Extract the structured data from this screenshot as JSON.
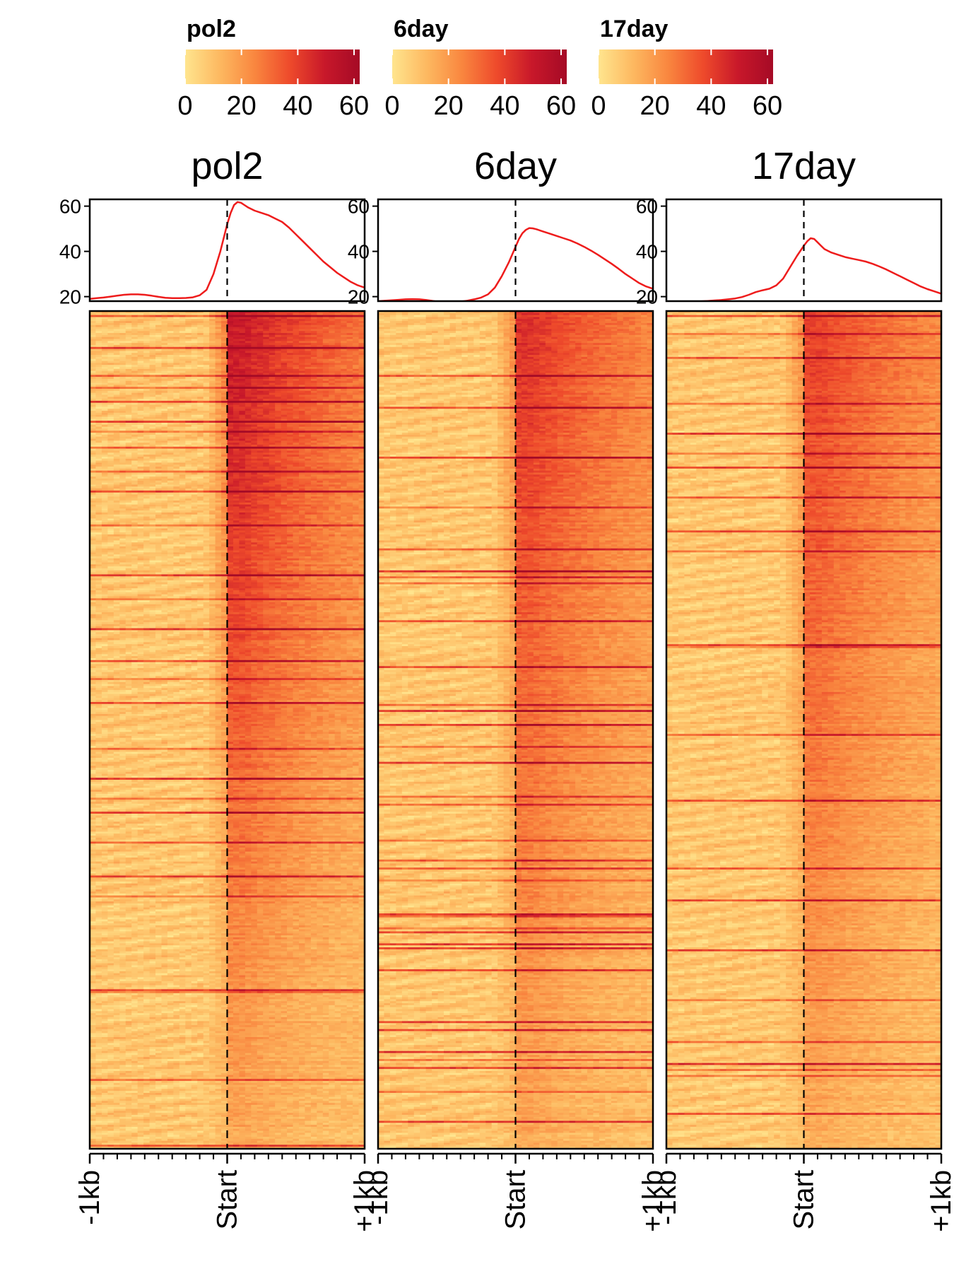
{
  "figure": {
    "type": "heatmap",
    "colorscale": [
      "#FFE58E",
      "#FDB860",
      "#F9863F",
      "#EE4A2B",
      "#C8182A",
      "#A50A26"
    ]
  },
  "legends": [
    {
      "title": "pol2",
      "ticks": [
        "0",
        "20",
        "40",
        "60"
      ],
      "range": [
        0,
        62
      ]
    },
    {
      "title": "6day",
      "ticks": [
        "0",
        "20",
        "40",
        "60"
      ],
      "range": [
        0,
        62
      ]
    },
    {
      "title": "17day",
      "ticks": [
        "0",
        "20",
        "40",
        "60"
      ],
      "range": [
        0,
        62
      ]
    }
  ],
  "panels": [
    {
      "title": "pol2"
    },
    {
      "title": "6day"
    },
    {
      "title": "17day"
    }
  ],
  "x_axis": {
    "ticks": [
      "-1kb",
      "Start",
      "+1kb"
    ],
    "range": [
      -1000,
      1000
    ]
  },
  "chart_data": [
    {
      "type": "line",
      "title": "pol2",
      "ylim": [
        18,
        63
      ],
      "y_ticks": [
        "20",
        "40",
        "60"
      ],
      "x": [
        -1000,
        -950,
        -900,
        -850,
        -800,
        -750,
        -700,
        -650,
        -600,
        -550,
        -500,
        -450,
        -400,
        -350,
        -300,
        -250,
        -200,
        -150,
        -100,
        -50,
        0,
        25,
        50,
        75,
        100,
        125,
        150,
        200,
        250,
        300,
        350,
        400,
        450,
        500,
        550,
        600,
        650,
        700,
        750,
        800,
        850,
        900,
        950,
        1000
      ],
      "series": [
        {
          "name": "pol2",
          "color": "#EE1C1C",
          "values": [
            19.0,
            19.3,
            19.6,
            20.0,
            20.4,
            20.8,
            21.0,
            21.0,
            20.8,
            20.4,
            19.9,
            19.5,
            19.3,
            19.3,
            19.4,
            19.7,
            20.6,
            23.0,
            30.0,
            40.0,
            52.0,
            57.0,
            60.5,
            61.8,
            61.5,
            60.5,
            59.5,
            58.0,
            57.0,
            56.0,
            54.5,
            53.0,
            50.5,
            47.5,
            44.5,
            41.5,
            38.5,
            35.5,
            33.0,
            30.5,
            28.5,
            26.5,
            25.0,
            24.0
          ]
        }
      ]
    },
    {
      "type": "line",
      "title": "6day",
      "ylim": [
        18,
        63
      ],
      "y_ticks": [
        "20",
        "40",
        "60"
      ],
      "x": [
        -1000,
        -950,
        -900,
        -850,
        -800,
        -750,
        -700,
        -650,
        -600,
        -550,
        -500,
        -450,
        -400,
        -350,
        -300,
        -250,
        -200,
        -150,
        -100,
        -50,
        0,
        25,
        50,
        75,
        100,
        125,
        150,
        200,
        250,
        300,
        350,
        400,
        450,
        500,
        550,
        600,
        650,
        700,
        750,
        800,
        850,
        900,
        950,
        1000
      ],
      "series": [
        {
          "name": "6day",
          "color": "#EE1C1C",
          "values": [
            18.0,
            18.2,
            18.4,
            18.6,
            18.8,
            18.9,
            18.8,
            18.5,
            18.1,
            17.6,
            17.4,
            17.5,
            17.8,
            18.2,
            18.8,
            19.6,
            21.0,
            24.0,
            29.0,
            35.0,
            42.0,
            45.5,
            48.0,
            49.5,
            50.3,
            50.2,
            49.8,
            48.8,
            47.8,
            46.8,
            45.8,
            44.8,
            43.5,
            42.0,
            40.3,
            38.5,
            36.5,
            34.5,
            32.3,
            30.0,
            28.0,
            26.0,
            24.5,
            23.5
          ]
        }
      ]
    },
    {
      "type": "line",
      "title": "17day",
      "ylim": [
        18,
        63
      ],
      "y_ticks": [
        "20",
        "40",
        "60"
      ],
      "x": [
        -1000,
        -950,
        -900,
        -850,
        -800,
        -750,
        -700,
        -650,
        -600,
        -550,
        -500,
        -450,
        -400,
        -350,
        -300,
        -250,
        -200,
        -150,
        -100,
        -50,
        0,
        25,
        50,
        75,
        100,
        125,
        150,
        200,
        250,
        300,
        350,
        400,
        450,
        500,
        550,
        600,
        650,
        700,
        750,
        800,
        850,
        900,
        950,
        1000
      ],
      "series": [
        {
          "name": "17day",
          "color": "#EE1C1C",
          "values": [
            16.0,
            16.4,
            16.8,
            17.2,
            17.6,
            17.9,
            18.1,
            18.3,
            18.5,
            18.8,
            19.2,
            19.8,
            20.8,
            22.0,
            22.8,
            23.5,
            25.0,
            28.0,
            33.0,
            38.0,
            42.5,
            44.5,
            45.8,
            45.5,
            44.0,
            42.5,
            41.0,
            39.5,
            38.5,
            37.5,
            36.8,
            36.2,
            35.5,
            34.5,
            33.3,
            32.0,
            30.5,
            29.0,
            27.5,
            26.0,
            24.5,
            23.3,
            22.3,
            21.3
          ]
        }
      ]
    }
  ]
}
